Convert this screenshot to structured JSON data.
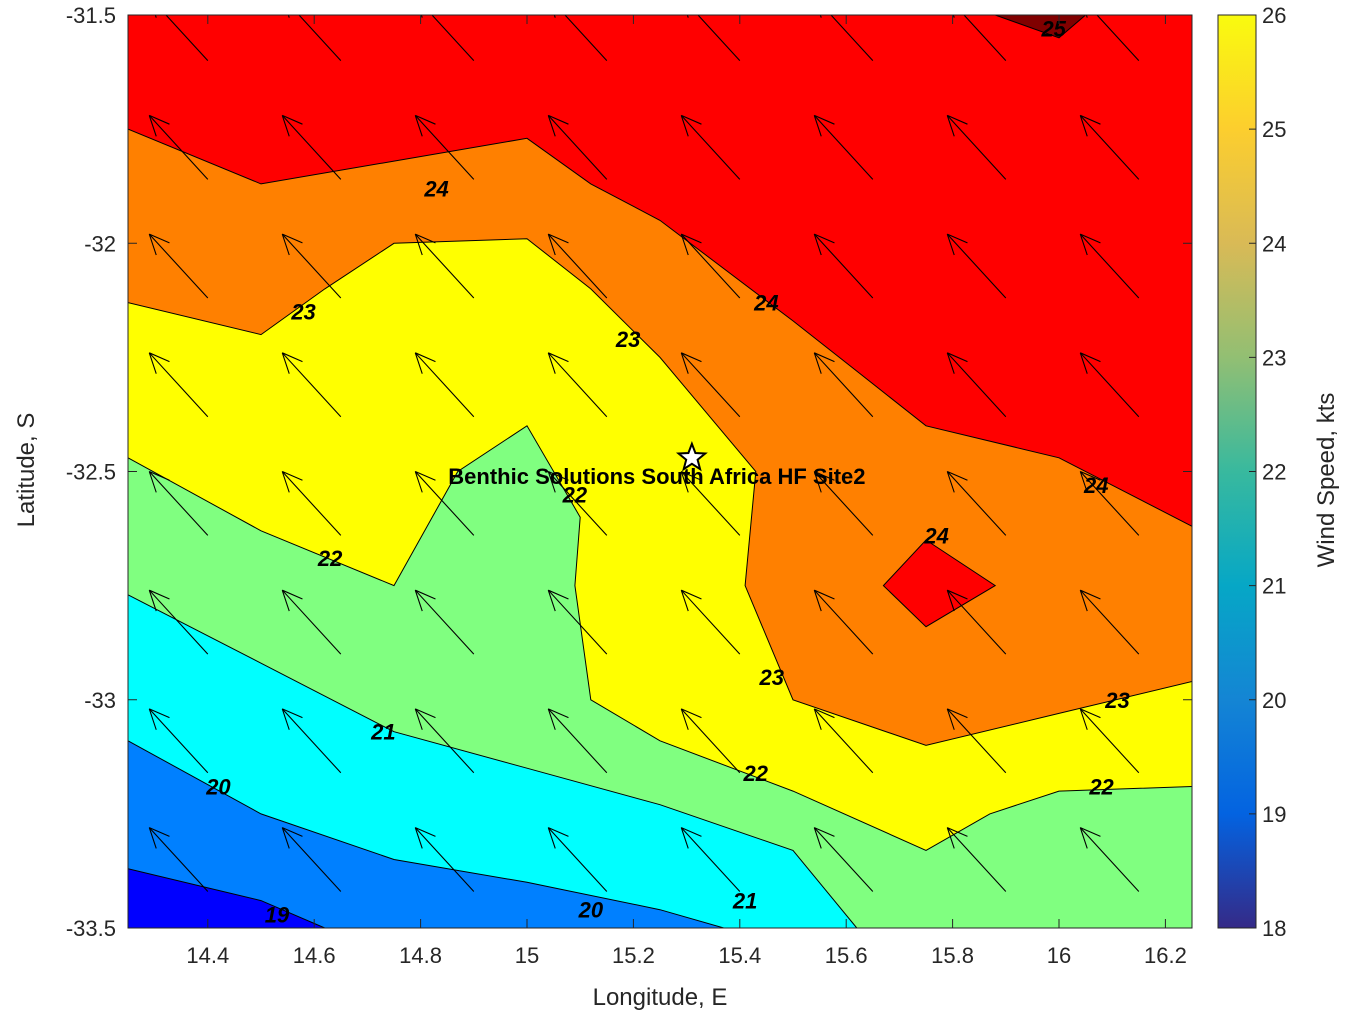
{
  "chart_data": {
    "type": "contour",
    "xlabel": "Longitude, E",
    "ylabel": "Latitude, S",
    "xlim": [
      14.25,
      16.25
    ],
    "ylim": [
      -33.5,
      -31.5
    ],
    "xticks": [
      "14.4",
      "14.6",
      "14.8",
      "15",
      "15.2",
      "15.4",
      "15.6",
      "15.8",
      "16",
      "16.2"
    ],
    "yticks": [
      "-31.5",
      "-32",
      "-32.5",
      "-33",
      "-33.5"
    ],
    "colorbar": {
      "label": "Wind Speed, kts",
      "range": [
        18,
        26
      ],
      "ticks": [
        "18",
        "19",
        "20",
        "21",
        "22",
        "23",
        "24",
        "25",
        "26"
      ]
    },
    "contour_levels": [
      19,
      20,
      21,
      22,
      23,
      24,
      25
    ],
    "level_colors": {
      "below_19": "#0000ff",
      "19_20": "#0080ff",
      "20_21": "#00ffff",
      "21_22": "#80ff80",
      "22_23": "#ffff00",
      "23_24": "#ff8000",
      "24_25": "#ff0000",
      "above_25": "#800000"
    },
    "contour_lines": [
      {
        "level": 19,
        "points": [
          [
            14.25,
            -33.37
          ],
          [
            14.5,
            -33.44
          ],
          [
            14.62,
            -33.5
          ]
        ]
      },
      {
        "level": 20,
        "points": [
          [
            14.25,
            -33.09
          ],
          [
            14.5,
            -33.25
          ],
          [
            14.75,
            -33.35
          ],
          [
            15.0,
            -33.4
          ],
          [
            15.25,
            -33.46
          ],
          [
            15.37,
            -33.5
          ]
        ]
      },
      {
        "level": 21,
        "points": [
          [
            14.25,
            -32.77
          ],
          [
            14.5,
            -32.92
          ],
          [
            14.75,
            -33.07
          ],
          [
            15.0,
            -33.15
          ],
          [
            15.25,
            -33.23
          ],
          [
            15.5,
            -33.33
          ],
          [
            15.62,
            -33.5
          ]
        ]
      },
      {
        "level": 22,
        "points": [
          [
            14.25,
            -32.47
          ],
          [
            14.5,
            -32.63
          ],
          [
            14.75,
            -32.75
          ],
          [
            14.87,
            -32.5
          ],
          [
            15.0,
            -32.4
          ],
          [
            15.1,
            -32.6
          ],
          [
            15.09,
            -32.75
          ],
          [
            15.12,
            -33.0
          ],
          [
            15.25,
            -33.09
          ],
          [
            15.5,
            -33.2
          ],
          [
            15.75,
            -33.33
          ],
          [
            15.87,
            -33.25
          ],
          [
            16.0,
            -33.2
          ],
          [
            16.25,
            -33.19
          ]
        ]
      },
      {
        "level": 23,
        "points": [
          [
            14.25,
            -32.13
          ],
          [
            14.5,
            -32.2
          ],
          [
            14.62,
            -32.1
          ],
          [
            14.75,
            -32.0
          ],
          [
            15.0,
            -31.99
          ],
          [
            15.12,
            -32.1
          ],
          [
            15.25,
            -32.25
          ],
          [
            15.43,
            -32.5
          ],
          [
            15.41,
            -32.75
          ],
          [
            15.5,
            -33.0
          ],
          [
            15.75,
            -33.1
          ],
          [
            16.0,
            -33.03
          ],
          [
            16.25,
            -32.96
          ]
        ]
      },
      {
        "level": 24,
        "points": [
          [
            14.25,
            -31.75
          ],
          [
            14.5,
            -31.87
          ],
          [
            14.75,
            -31.82
          ],
          [
            15.0,
            -31.77
          ],
          [
            15.12,
            -31.87
          ],
          [
            15.25,
            -31.95
          ],
          [
            15.5,
            -32.17
          ],
          [
            15.62,
            -32.28
          ],
          [
            15.75,
            -32.4
          ],
          [
            16.0,
            -32.47
          ],
          [
            16.25,
            -32.62
          ]
        ]
      },
      {
        "level": 24,
        "closed": true,
        "points": [
          [
            15.75,
            -32.65
          ],
          [
            15.88,
            -32.75
          ],
          [
            15.75,
            -32.84
          ],
          [
            15.67,
            -32.75
          ]
        ]
      },
      {
        "level": 25,
        "points": [
          [
            15.88,
            -31.5
          ],
          [
            16.0,
            -31.55
          ],
          [
            16.05,
            -31.5
          ]
        ]
      }
    ],
    "contour_labels": [
      {
        "text": "24",
        "x": 14.83,
        "y": -31.88
      },
      {
        "text": "23",
        "x": 14.58,
        "y": -32.15
      },
      {
        "text": "23",
        "x": 15.19,
        "y": -32.21
      },
      {
        "text": "24",
        "x": 15.45,
        "y": -32.13
      },
      {
        "text": "24",
        "x": 16.07,
        "y": -32.53
      },
      {
        "text": "24",
        "x": 15.77,
        "y": -32.64
      },
      {
        "text": "22",
        "x": 14.63,
        "y": -32.69
      },
      {
        "text": "22",
        "x": 15.09,
        "y": -32.55
      },
      {
        "text": "23",
        "x": 15.46,
        "y": -32.95
      },
      {
        "text": "23",
        "x": 16.11,
        "y": -33.0
      },
      {
        "text": "21",
        "x": 14.73,
        "y": -33.07
      },
      {
        "text": "22",
        "x": 15.43,
        "y": -33.16
      },
      {
        "text": "22",
        "x": 16.08,
        "y": -33.19
      },
      {
        "text": "20",
        "x": 14.42,
        "y": -33.19
      },
      {
        "text": "21",
        "x": 15.41,
        "y": -33.44
      },
      {
        "text": "19",
        "x": 14.53,
        "y": -33.47
      },
      {
        "text": "20",
        "x": 15.12,
        "y": -33.46
      },
      {
        "text": "25",
        "x": 15.99,
        "y": -31.53
      }
    ],
    "wind_vectors": {
      "lon": [
        14.4,
        14.65,
        14.9,
        15.15,
        15.4,
        15.65,
        15.9,
        16.15
      ],
      "lat": [
        -31.6,
        -31.86,
        -32.12,
        -32.38,
        -32.64,
        -32.9,
        -33.16,
        -33.42
      ],
      "direction": "toward north-west",
      "dlon": -0.11,
      "dlat": 0.14
    },
    "site": {
      "name": "Benthic Solutions South Africa HF Site2",
      "lon": 15.31,
      "lat": -32.47
    }
  }
}
